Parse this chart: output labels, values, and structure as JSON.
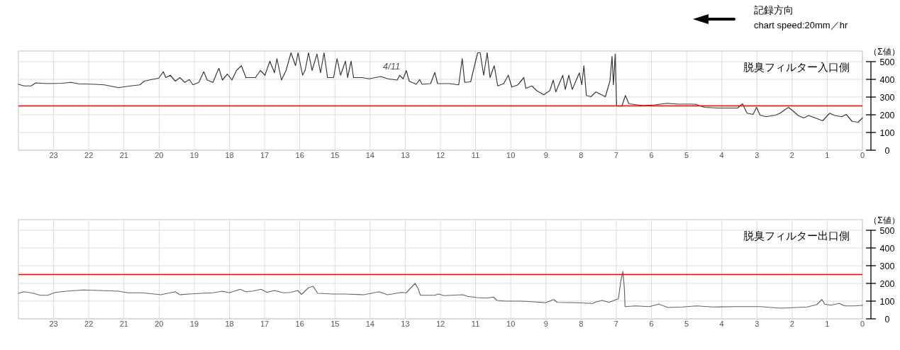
{
  "chart_data": [
    {
      "type": "line",
      "title": "脱臭フィルター入口側",
      "ylabel": "（Σ値）",
      "annotations": [
        "4/11",
        "記録方向",
        "chart speed:20mm／hr"
      ],
      "xlim": [
        24,
        0
      ],
      "xticks": [
        23,
        22,
        21,
        20,
        19,
        18,
        17,
        16,
        15,
        14,
        13,
        12,
        11,
        10,
        9,
        8,
        7,
        6,
        5,
        4,
        3,
        2,
        1,
        0
      ],
      "ylim": [
        0,
        560
      ],
      "yticks": [
        0,
        100,
        200,
        300,
        400,
        500
      ],
      "grid": true,
      "ref_lines": [
        {
          "axis": "y",
          "value": 250,
          "color": "#ff0000"
        }
      ],
      "series": [
        {
          "color": "#3a3a3a",
          "x": [
            24,
            23.84,
            23.64,
            23.51,
            23.17,
            22.77,
            22.5,
            22.3,
            21.83,
            21.56,
            21.15,
            20.89,
            20.55,
            20.42,
            20.21,
            20.01,
            19.88,
            19.81,
            19.68,
            19.54,
            19.41,
            19.27,
            19.14,
            19.04,
            18.87,
            18.73,
            18.63,
            18.47,
            18.3,
            18.2,
            18.06,
            17.93,
            17.8,
            17.66,
            17.53,
            17.26,
            17.12,
            16.99,
            16.85,
            16.72,
            16.65,
            16.52,
            16.39,
            16.25,
            16.12,
            16.05,
            15.92,
            15.85,
            15.75,
            15.65,
            15.51,
            15.41,
            15.31,
            15.21,
            15.04,
            14.94,
            14.84,
            14.7,
            14.64,
            14.54,
            14.47,
            14.23,
            14.03,
            13.7,
            13.49,
            13.23,
            13.16,
            13.06,
            12.97,
            12.89,
            12.69,
            12.59,
            12.52,
            12.28,
            12.16,
            12.08,
            11.75,
            11.48,
            11.38,
            11.31,
            11.14,
            11.08,
            10.94,
            10.87,
            10.77,
            10.67,
            10.59,
            10.47,
            10.37,
            10.2,
            10.07,
            9.97,
            9.8,
            9.63,
            9.57,
            9.4,
            9.26,
            9.06,
            8.89,
            8.79,
            8.72,
            8.52,
            8.45,
            8.35,
            8.25,
            8.05,
            7.98,
            7.92,
            7.85,
            7.72,
            7.58,
            7.45,
            7.31,
            7.25,
            7.18,
            7.12,
            7.08,
            7.03,
            6.99,
            6.84,
            6.74,
            6.64,
            6.24,
            5.9,
            5.56,
            5.23,
            4.76,
            4.49,
            4.09,
            3.55,
            3.41,
            3.28,
            3.11,
            3.01,
            2.91,
            2.74,
            2.47,
            2.34,
            2.2,
            2.1,
            1.94,
            1.83,
            1.67,
            1.53,
            1.26,
            1.13,
            0.93,
            0.79,
            0.59,
            0.46,
            0.29,
            0.12,
            0
          ],
          "values": [
            372,
            363,
            363,
            380,
            376,
            378,
            383,
            375,
            372,
            369,
            353,
            361,
            369,
            390,
            399,
            407,
            443,
            410,
            423,
            390,
            410,
            383,
            399,
            369,
            383,
            443,
            396,
            383,
            463,
            396,
            430,
            396,
            450,
            477,
            410,
            410,
            450,
            423,
            503,
            437,
            517,
            396,
            450,
            550,
            477,
            550,
            423,
            450,
            550,
            450,
            543,
            437,
            550,
            410,
            410,
            517,
            423,
            503,
            410,
            503,
            410,
            410,
            403,
            416,
            403,
            396,
            423,
            403,
            450,
            390,
            372,
            399,
            372,
            376,
            439,
            376,
            376,
            369,
            517,
            383,
            386,
            437,
            550,
            550,
            423,
            550,
            410,
            477,
            363,
            376,
            423,
            356,
            369,
            410,
            349,
            363,
            336,
            313,
            336,
            396,
            329,
            423,
            343,
            423,
            343,
            437,
            369,
            477,
            309,
            302,
            329,
            316,
            302,
            343,
            390,
            530,
            369,
            543,
            249,
            249,
            309,
            262,
            252,
            256,
            265,
            260,
            260,
            242,
            238,
            238,
            262,
            209,
            202,
            242,
            198,
            189,
            198,
            209,
            229,
            242,
            216,
            196,
            182,
            196,
            176,
            166,
            209,
            196,
            189,
            202,
            162,
            158,
            182
          ]
        }
      ]
    },
    {
      "type": "line",
      "title": "脱臭フィルター出口側",
      "ylabel": "（Σ値）",
      "xlim": [
        24,
        0
      ],
      "xticks": [
        23,
        22,
        21,
        20,
        19,
        18,
        17,
        16,
        15,
        14,
        13,
        12,
        11,
        10,
        9,
        8,
        7,
        6,
        5,
        4,
        3,
        2,
        1,
        0
      ],
      "ylim": [
        0,
        560
      ],
      "yticks": [
        0,
        100,
        200,
        300,
        400,
        500
      ],
      "grid": true,
      "ref_lines": [
        {
          "axis": "y",
          "value": 250,
          "color": "#ff0000"
        }
      ],
      "series": [
        {
          "color": "#666666",
          "x": [
            24,
            23.84,
            23.64,
            23.37,
            23.17,
            22.96,
            22.63,
            22.16,
            21.69,
            21.15,
            20.89,
            20.48,
            19.95,
            19.54,
            19.41,
            19.14,
            18.81,
            18.47,
            18.2,
            18.0,
            17.7,
            17.53,
            17.33,
            17.1,
            16.93,
            16.73,
            16.46,
            16.26,
            16.06,
            15.95,
            15.75,
            15.62,
            15.49,
            15.05,
            14.71,
            14.18,
            13.74,
            13.51,
            13.11,
            12.97,
            12.84,
            12.72,
            12.64,
            12.57,
            12.17,
            12.05,
            11.9,
            11.36,
            11.23,
            10.96,
            10.69,
            10.49,
            10.39,
            10.16,
            9.68,
            9.35,
            9.01,
            8.78,
            8.68,
            8.14,
            7.67,
            7.57,
            7.4,
            7.2,
            7.07,
            6.94,
            6.87,
            6.81,
            6.77,
            6.75,
            6.46,
            6.06,
            5.79,
            5.53,
            5.12,
            4.72,
            4.25,
            3.58,
            2.91,
            2.31,
            1.57,
            1.3,
            1.15,
            1.07,
            0.9,
            0.66,
            0.5,
            0.23,
            0
          ],
          "values": [
            144,
            153,
            147,
            133,
            133,
            149,
            156,
            163,
            160,
            156,
            147,
            147,
            136,
            153,
            136,
            140,
            144,
            147,
            156,
            147,
            167,
            153,
            157,
            167,
            149,
            160,
            147,
            149,
            160,
            138,
            176,
            184,
            144,
            140,
            140,
            136,
            153,
            136,
            149,
            147,
            176,
            200,
            173,
            133,
            133,
            140,
            131,
            136,
            127,
            120,
            117,
            123,
            104,
            100,
            100,
            96,
            91,
            109,
            93,
            91,
            87,
            96,
            104,
            93,
            104,
            113,
            213,
            267,
            173,
            69,
            73,
            69,
            83,
            64,
            67,
            73,
            67,
            69,
            69,
            60,
            67,
            80,
            109,
            83,
            77,
            87,
            73,
            73,
            76
          ]
        }
      ]
    }
  ]
}
